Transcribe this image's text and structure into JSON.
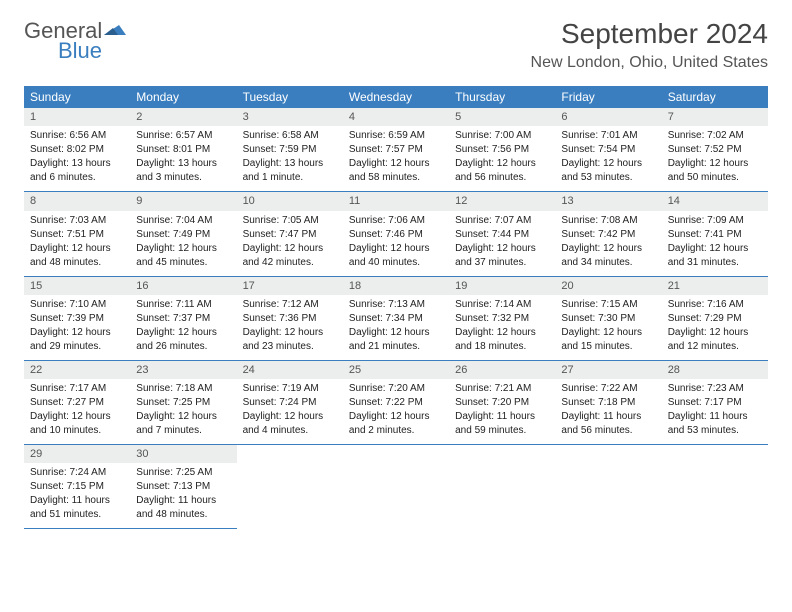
{
  "brand": {
    "general": "General",
    "blue": "Blue"
  },
  "title": "September 2024",
  "location": "New London, Ohio, United States",
  "dayHeaders": [
    "Sunday",
    "Monday",
    "Tuesday",
    "Wednesday",
    "Thursday",
    "Friday",
    "Saturday"
  ],
  "colors": {
    "header_bg": "#3a7ebf",
    "header_text": "#ffffff",
    "daynum_bg": "#eceded",
    "border": "#3a7ebf",
    "logo_accent": "#3a7ebf"
  },
  "weeks": [
    [
      {
        "n": "1",
        "sr": "Sunrise: 6:56 AM",
        "ss": "Sunset: 8:02 PM",
        "d1": "Daylight: 13 hours",
        "d2": "and 6 minutes."
      },
      {
        "n": "2",
        "sr": "Sunrise: 6:57 AM",
        "ss": "Sunset: 8:01 PM",
        "d1": "Daylight: 13 hours",
        "d2": "and 3 minutes."
      },
      {
        "n": "3",
        "sr": "Sunrise: 6:58 AM",
        "ss": "Sunset: 7:59 PM",
        "d1": "Daylight: 13 hours",
        "d2": "and 1 minute."
      },
      {
        "n": "4",
        "sr": "Sunrise: 6:59 AM",
        "ss": "Sunset: 7:57 PM",
        "d1": "Daylight: 12 hours",
        "d2": "and 58 minutes."
      },
      {
        "n": "5",
        "sr": "Sunrise: 7:00 AM",
        "ss": "Sunset: 7:56 PM",
        "d1": "Daylight: 12 hours",
        "d2": "and 56 minutes."
      },
      {
        "n": "6",
        "sr": "Sunrise: 7:01 AM",
        "ss": "Sunset: 7:54 PM",
        "d1": "Daylight: 12 hours",
        "d2": "and 53 minutes."
      },
      {
        "n": "7",
        "sr": "Sunrise: 7:02 AM",
        "ss": "Sunset: 7:52 PM",
        "d1": "Daylight: 12 hours",
        "d2": "and 50 minutes."
      }
    ],
    [
      {
        "n": "8",
        "sr": "Sunrise: 7:03 AM",
        "ss": "Sunset: 7:51 PM",
        "d1": "Daylight: 12 hours",
        "d2": "and 48 minutes."
      },
      {
        "n": "9",
        "sr": "Sunrise: 7:04 AM",
        "ss": "Sunset: 7:49 PM",
        "d1": "Daylight: 12 hours",
        "d2": "and 45 minutes."
      },
      {
        "n": "10",
        "sr": "Sunrise: 7:05 AM",
        "ss": "Sunset: 7:47 PM",
        "d1": "Daylight: 12 hours",
        "d2": "and 42 minutes."
      },
      {
        "n": "11",
        "sr": "Sunrise: 7:06 AM",
        "ss": "Sunset: 7:46 PM",
        "d1": "Daylight: 12 hours",
        "d2": "and 40 minutes."
      },
      {
        "n": "12",
        "sr": "Sunrise: 7:07 AM",
        "ss": "Sunset: 7:44 PM",
        "d1": "Daylight: 12 hours",
        "d2": "and 37 minutes."
      },
      {
        "n": "13",
        "sr": "Sunrise: 7:08 AM",
        "ss": "Sunset: 7:42 PM",
        "d1": "Daylight: 12 hours",
        "d2": "and 34 minutes."
      },
      {
        "n": "14",
        "sr": "Sunrise: 7:09 AM",
        "ss": "Sunset: 7:41 PM",
        "d1": "Daylight: 12 hours",
        "d2": "and 31 minutes."
      }
    ],
    [
      {
        "n": "15",
        "sr": "Sunrise: 7:10 AM",
        "ss": "Sunset: 7:39 PM",
        "d1": "Daylight: 12 hours",
        "d2": "and 29 minutes."
      },
      {
        "n": "16",
        "sr": "Sunrise: 7:11 AM",
        "ss": "Sunset: 7:37 PM",
        "d1": "Daylight: 12 hours",
        "d2": "and 26 minutes."
      },
      {
        "n": "17",
        "sr": "Sunrise: 7:12 AM",
        "ss": "Sunset: 7:36 PM",
        "d1": "Daylight: 12 hours",
        "d2": "and 23 minutes."
      },
      {
        "n": "18",
        "sr": "Sunrise: 7:13 AM",
        "ss": "Sunset: 7:34 PM",
        "d1": "Daylight: 12 hours",
        "d2": "and 21 minutes."
      },
      {
        "n": "19",
        "sr": "Sunrise: 7:14 AM",
        "ss": "Sunset: 7:32 PM",
        "d1": "Daylight: 12 hours",
        "d2": "and 18 minutes."
      },
      {
        "n": "20",
        "sr": "Sunrise: 7:15 AM",
        "ss": "Sunset: 7:30 PM",
        "d1": "Daylight: 12 hours",
        "d2": "and 15 minutes."
      },
      {
        "n": "21",
        "sr": "Sunrise: 7:16 AM",
        "ss": "Sunset: 7:29 PM",
        "d1": "Daylight: 12 hours",
        "d2": "and 12 minutes."
      }
    ],
    [
      {
        "n": "22",
        "sr": "Sunrise: 7:17 AM",
        "ss": "Sunset: 7:27 PM",
        "d1": "Daylight: 12 hours",
        "d2": "and 10 minutes."
      },
      {
        "n": "23",
        "sr": "Sunrise: 7:18 AM",
        "ss": "Sunset: 7:25 PM",
        "d1": "Daylight: 12 hours",
        "d2": "and 7 minutes."
      },
      {
        "n": "24",
        "sr": "Sunrise: 7:19 AM",
        "ss": "Sunset: 7:24 PM",
        "d1": "Daylight: 12 hours",
        "d2": "and 4 minutes."
      },
      {
        "n": "25",
        "sr": "Sunrise: 7:20 AM",
        "ss": "Sunset: 7:22 PM",
        "d1": "Daylight: 12 hours",
        "d2": "and 2 minutes."
      },
      {
        "n": "26",
        "sr": "Sunrise: 7:21 AM",
        "ss": "Sunset: 7:20 PM",
        "d1": "Daylight: 11 hours",
        "d2": "and 59 minutes."
      },
      {
        "n": "27",
        "sr": "Sunrise: 7:22 AM",
        "ss": "Sunset: 7:18 PM",
        "d1": "Daylight: 11 hours",
        "d2": "and 56 minutes."
      },
      {
        "n": "28",
        "sr": "Sunrise: 7:23 AM",
        "ss": "Sunset: 7:17 PM",
        "d1": "Daylight: 11 hours",
        "d2": "and 53 minutes."
      }
    ],
    [
      {
        "n": "29",
        "sr": "Sunrise: 7:24 AM",
        "ss": "Sunset: 7:15 PM",
        "d1": "Daylight: 11 hours",
        "d2": "and 51 minutes."
      },
      {
        "n": "30",
        "sr": "Sunrise: 7:25 AM",
        "ss": "Sunset: 7:13 PM",
        "d1": "Daylight: 11 hours",
        "d2": "and 48 minutes."
      },
      null,
      null,
      null,
      null,
      null
    ]
  ]
}
